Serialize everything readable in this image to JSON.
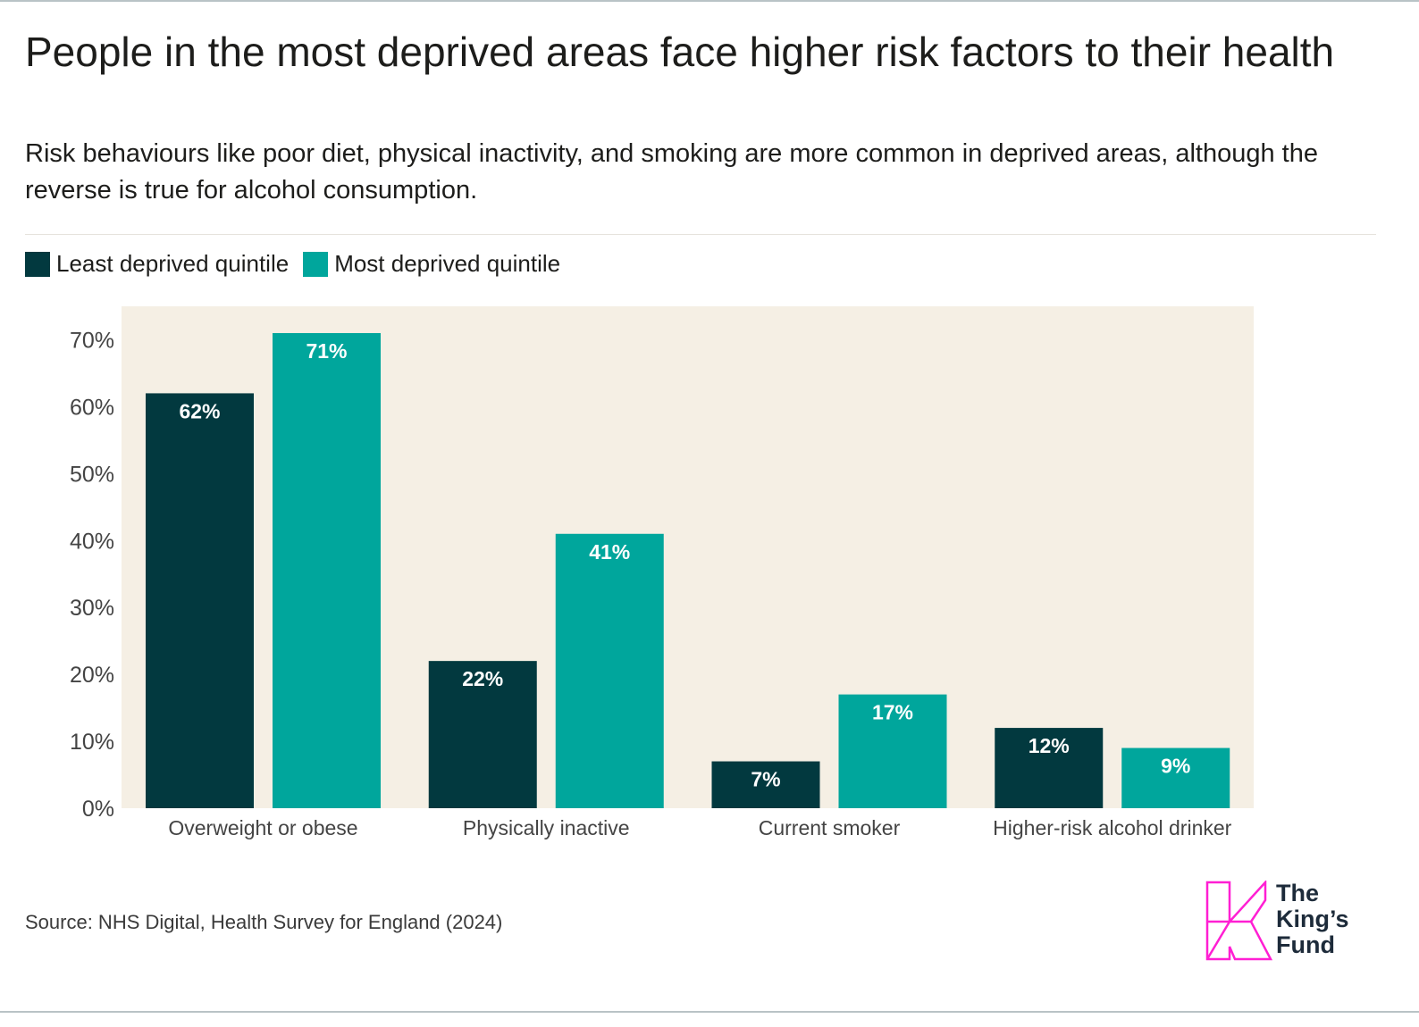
{
  "title": "People in the most deprived areas face higher risk factors to their health",
  "subtitle": "Risk behaviours like poor diet, physical inactivity, and smoking are more common in deprived areas, although the reverse is true for alcohol consumption.",
  "legend": [
    {
      "label": "Least deprived quintile",
      "color": "#02393f"
    },
    {
      "label": "Most deprived quintile",
      "color": "#00a69c"
    }
  ],
  "source": "Source: NHS Digital, Health Survey for England (2024)",
  "logo": {
    "line1": "The",
    "line2": "King’s",
    "line3": "Fund",
    "mark_color": "#ff1fd3"
  },
  "chart_data": {
    "type": "bar",
    "categories": [
      "Overweight or obese",
      "Physically inactive",
      "Current smoker",
      "Higher-risk alcohol drinker"
    ],
    "series": [
      {
        "name": "Least deprived quintile",
        "values": [
          62,
          22,
          7,
          12
        ],
        "color": "#02393f"
      },
      {
        "name": "Most deprived quintile",
        "values": [
          71,
          41,
          17,
          9
        ],
        "color": "#00a69c"
      }
    ],
    "data_labels": [
      [
        "62%",
        "22%",
        "7%",
        "12%"
      ],
      [
        "71%",
        "41%",
        "17%",
        "9%"
      ]
    ],
    "ylim": [
      0,
      75
    ],
    "yticks": [
      0,
      10,
      20,
      30,
      40,
      50,
      60,
      70
    ],
    "ytick_labels": [
      "0%",
      "10%",
      "20%",
      "30%",
      "40%",
      "50%",
      "60%",
      "70%"
    ],
    "plot_background": "#f5efe4",
    "grid": false,
    "legend_position": "top-left"
  }
}
